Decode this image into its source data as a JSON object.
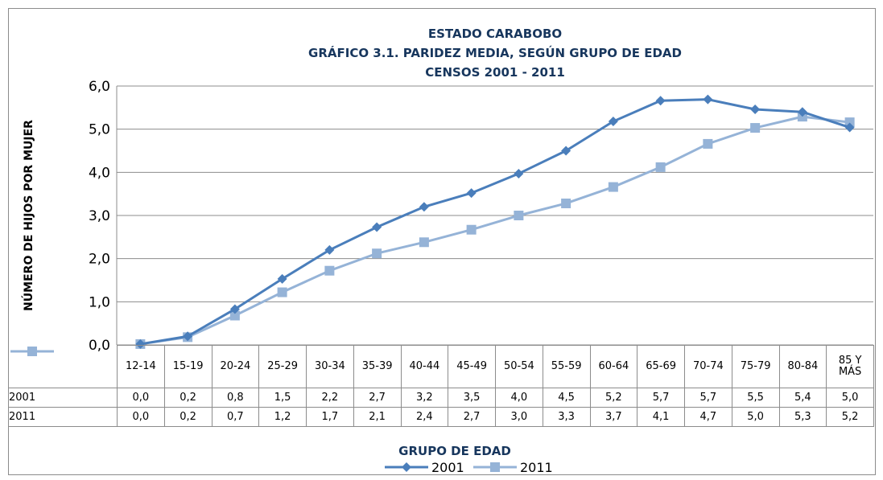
{
  "chart_data": {
    "type": "line",
    "title": "ESTADO CARABOBO",
    "subtitle": "GRÁFICO 3.1. PARIDEZ MEDIA, SEGÚN GRUPO DE EDAD",
    "subtitle2": "CENSOS 2001 - 2011",
    "x_label": "GRUPO DE EDAD",
    "y_label": "NÚMERO DE HIJOS POR MUJER",
    "categories": [
      "12-14",
      "15-19",
      "20-24",
      "25-29",
      "30-34",
      "35-39",
      "40-44",
      "45-49",
      "50-54",
      "55-59",
      "60-64",
      "65-69",
      "70-74",
      "75-79",
      "80-84",
      "85 Y MÁS"
    ],
    "series": [
      {
        "name": "2001",
        "color": "#4a7ebb",
        "marker": "diamond",
        "values": [
          0.02,
          0.2,
          0.83,
          1.53,
          2.2,
          2.73,
          3.2,
          3.52,
          3.97,
          4.5,
          5.18,
          5.66,
          5.69,
          5.46,
          5.4,
          5.04
        ],
        "value_labels": [
          "0,0",
          "0,2",
          "0,8",
          "1,5",
          "2,2",
          "2,7",
          "3,2",
          "3,5",
          "4,0",
          "4,5",
          "5,2",
          "5,7",
          "5,7",
          "5,5",
          "5,4",
          "5,0"
        ]
      },
      {
        "name": "2011",
        "color": "#95b3d7",
        "marker": "square",
        "values": [
          0.02,
          0.18,
          0.68,
          1.22,
          1.72,
          2.12,
          2.38,
          2.67,
          3.0,
          3.28,
          3.66,
          4.12,
          4.66,
          5.03,
          5.29,
          5.16
        ],
        "value_labels": [
          "0,0",
          "0,2",
          "0,7",
          "1,2",
          "1,7",
          "2,1",
          "2,4",
          "2,7",
          "3,0",
          "3,3",
          "3,7",
          "4,1",
          "4,7",
          "5,0",
          "5,3",
          "5,2"
        ]
      }
    ],
    "ylim": [
      0,
      6
    ],
    "yticks": [
      {
        "value": 0,
        "label": "0,0"
      },
      {
        "value": 1,
        "label": "1,0"
      },
      {
        "value": 2,
        "label": "2,0"
      },
      {
        "value": 3,
        "label": "3,0"
      },
      {
        "value": 4,
        "label": "4,0"
      },
      {
        "value": 5,
        "label": "5,0"
      },
      {
        "value": 6,
        "label": "6,0"
      }
    ],
    "grid": true,
    "legend": "bottom"
  }
}
